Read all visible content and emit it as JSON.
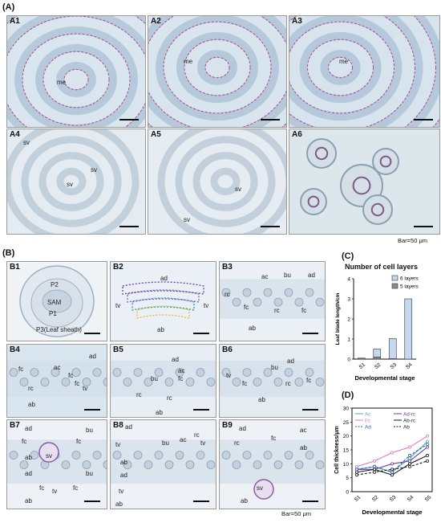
{
  "section_a": {
    "label": "(A)",
    "panels": [
      {
        "id": "A1",
        "labels": [
          "me"
        ]
      },
      {
        "id": "A2",
        "labels": [
          "me"
        ]
      },
      {
        "id": "A3",
        "labels": [
          "me"
        ]
      },
      {
        "id": "A4",
        "labels": [
          "sv",
          "sv",
          "sv"
        ]
      },
      {
        "id": "A5",
        "labels": [
          "sv",
          "sv"
        ]
      },
      {
        "id": "A6",
        "labels": []
      }
    ],
    "bar_note": "Bar=50 μm"
  },
  "section_b": {
    "label": "(B)",
    "panels": [
      {
        "id": "B1",
        "labels": [
          "P2",
          "SAM",
          "P1",
          "P3(Leaf sheath)"
        ]
      },
      {
        "id": "B2",
        "labels": [
          "ad",
          "tv",
          "tv",
          "ab"
        ]
      },
      {
        "id": "B3",
        "labels": [
          "ad",
          "ac",
          "bu",
          "rc",
          "fc",
          "rc",
          "fc",
          "ab"
        ]
      },
      {
        "id": "B4",
        "labels": [
          "ad",
          "fc",
          "ac",
          "fc",
          "rc",
          "fc",
          "tv",
          "ab"
        ]
      },
      {
        "id": "B5",
        "labels": [
          "ad",
          "ac",
          "bu",
          "fc",
          "rc",
          "rc",
          "ab"
        ]
      },
      {
        "id": "B6",
        "labels": [
          "ad",
          "bu",
          "tv",
          "fc",
          "rc",
          "fc",
          "ab"
        ]
      },
      {
        "id": "B7",
        "labels": [
          "ad",
          "bu",
          "fc",
          "sv",
          "fc",
          "ab",
          "ad",
          "bu",
          "fc",
          "tv",
          "fc",
          "ab"
        ]
      },
      {
        "id": "B8",
        "labels": [
          "ad",
          "ac",
          "rc",
          "tv",
          "bu",
          "tv",
          "ab",
          "ad",
          "tv",
          "ab"
        ]
      },
      {
        "id": "B9",
        "labels": [
          "ad",
          "rc",
          "fc",
          "ac",
          "ab",
          "sv",
          "ab"
        ]
      }
    ],
    "bar_note": "Bar=50 μm"
  },
  "section_c": {
    "label": "(C)",
    "title": "Number of cell layers",
    "chart_data": {
      "type": "bar",
      "categories": [
        "S1",
        "S2",
        "S3",
        "S4"
      ],
      "series": [
        {
          "name": "6 layers",
          "values": [
            0,
            0.4,
            1.0,
            3.0
          ],
          "color": "#c5d8f0"
        },
        {
          "name": "5 layers",
          "values": [
            0.05,
            0.1,
            0.02,
            0
          ],
          "color": "#8c8c8c"
        }
      ],
      "xlabel": "Developmental stage",
      "ylabel": "Leaf blade length/cm",
      "ylim": [
        0,
        4
      ],
      "yticks": [
        "0",
        "1",
        "2",
        "3",
        "4"
      ]
    }
  },
  "section_d": {
    "label": "(D)",
    "chart_data": {
      "type": "line",
      "categories": [
        "S1",
        "S2",
        "S3",
        "S4",
        "S5"
      ],
      "series": [
        {
          "name": "Ac",
          "values": [
            8,
            9,
            7,
            12,
            18
          ],
          "color": "#4fb59a",
          "style": "solid"
        },
        {
          "name": "Ad-rc",
          "values": [
            8,
            8,
            10,
            11,
            16
          ],
          "color": "#6b3fa0",
          "style": "solid"
        },
        {
          "name": "Fc",
          "values": [
            9,
            11,
            14,
            16,
            20
          ],
          "color": "#e07ab8",
          "style": "solid"
        },
        {
          "name": "Ab-rc",
          "values": [
            7,
            8,
            6,
            10,
            13
          ],
          "color": "#1a1a1a",
          "style": "solid"
        },
        {
          "name": "Ad",
          "values": [
            8,
            9,
            7,
            13,
            17
          ],
          "color": "#2b57c7",
          "style": "dashed"
        },
        {
          "name": "Ab",
          "values": [
            6,
            7,
            8,
            9,
            11
          ],
          "color": "#1a1a1a",
          "style": "dashed"
        }
      ],
      "xlabel": "Developmental stage",
      "ylabel": "Cell thickness/μm",
      "ylim": [
        0,
        30
      ],
      "yticks": [
        "0",
        "5",
        "10",
        "15",
        "20",
        "25",
        "30"
      ]
    }
  }
}
